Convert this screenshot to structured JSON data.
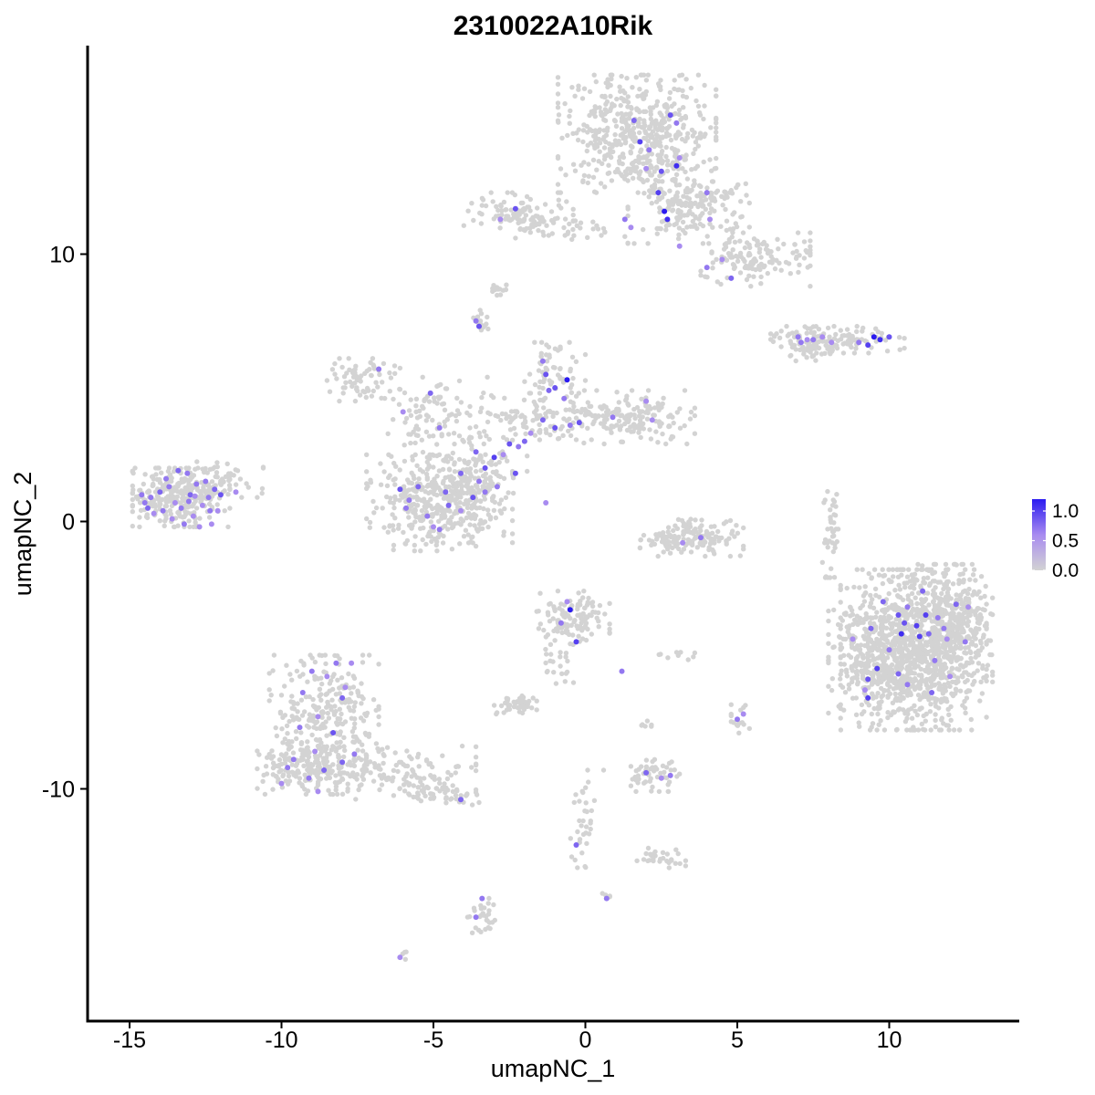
{
  "chart_data": {
    "type": "scatter",
    "title": "2310022A10Rik",
    "xlabel": "umapNC_1",
    "ylabel": "umapNC_2",
    "xlim": [
      -16.3,
      14.4
    ],
    "ylim": [
      -18.7,
      17.9
    ],
    "x_ticks": [
      -15,
      -10,
      -5,
      0,
      5,
      10
    ],
    "x_tick_labels": [
      "-15",
      "-10",
      "-5",
      "0",
      "5",
      "10"
    ],
    "y_ticks": [
      10,
      0,
      -10
    ],
    "y_tick_labels": [
      "10",
      "0",
      "-10"
    ],
    "grid": false,
    "legend": {
      "placement": "right",
      "type": "colorbar",
      "min": 0,
      "max": 1.2,
      "ticks": [
        1.0,
        0.5,
        0.0
      ],
      "tick_labels": [
        "1.0",
        "0.5",
        "0.0"
      ],
      "low_color": "#D3D3D3",
      "high_color": "#2B1BF0"
    },
    "colors": {
      "low": "#D3D3D3",
      "mid": "#A88BF0",
      "high": "#2B1BF0"
    },
    "clusters": [
      {
        "cx": 1.7,
        "cy": 14.5,
        "sx": 1.3,
        "sy": 1.1,
        "n": 520
      },
      {
        "cx": 3.4,
        "cy": 11.8,
        "sx": 1.0,
        "sy": 0.7,
        "n": 200
      },
      {
        "cx": 5.6,
        "cy": 9.8,
        "sx": 0.9,
        "sy": 0.5,
        "n": 130
      },
      {
        "cx": -2.2,
        "cy": 11.5,
        "sx": 0.9,
        "sy": 0.4,
        "n": 110
      },
      {
        "cx": -0.5,
        "cy": 11.0,
        "sx": 0.9,
        "sy": 0.25,
        "n": 30
      },
      {
        "cx": -7.3,
        "cy": 5.3,
        "sx": 0.6,
        "sy": 0.4,
        "n": 70
      },
      {
        "cx": -1.0,
        "cy": 5.5,
        "sx": 0.5,
        "sy": 0.6,
        "n": 60
      },
      {
        "cx": 1.6,
        "cy": 3.9,
        "sx": 1.0,
        "sy": 0.5,
        "n": 170
      },
      {
        "cx": -1.8,
        "cy": 3.8,
        "sx": 1.0,
        "sy": 0.5,
        "n": 110
      },
      {
        "cx": -5.0,
        "cy": 4.0,
        "sx": 0.9,
        "sy": 0.7,
        "n": 80
      },
      {
        "cx": -3.6,
        "cy": 2.0,
        "sx": 0.9,
        "sy": 0.6,
        "n": 90
      },
      {
        "cx": -5.4,
        "cy": 0.7,
        "sx": 0.9,
        "sy": 0.9,
        "n": 260
      },
      {
        "cx": -3.8,
        "cy": 0.8,
        "sx": 0.7,
        "sy": 0.8,
        "n": 180
      },
      {
        "cx": -13.3,
        "cy": 0.9,
        "sx": 0.8,
        "sy": 0.55,
        "n": 310
      },
      {
        "cx": -11.8,
        "cy": 1.6,
        "sx": 0.6,
        "sy": 0.35,
        "n": 40
      },
      {
        "cx": 3.5,
        "cy": -0.6,
        "sx": 0.85,
        "sy": 0.35,
        "n": 150
      },
      {
        "cx": 8.3,
        "cy": 6.8,
        "sx": 1.1,
        "sy": 0.25,
        "n": 130
      },
      {
        "cx": -3.5,
        "cy": 7.5,
        "sx": 0.15,
        "sy": 0.2,
        "n": 15
      },
      {
        "cx": -2.9,
        "cy": 8.7,
        "sx": 0.15,
        "sy": 0.12,
        "n": 12
      },
      {
        "cx": 8.1,
        "cy": -0.3,
        "sx": 0.15,
        "sy": 0.9,
        "n": 40
      },
      {
        "cx": 10.8,
        "cy": -4.8,
        "sx": 1.2,
        "sy": 1.5,
        "n": 1000
      },
      {
        "cx": 12.0,
        "cy": -3.8,
        "sx": 0.7,
        "sy": 1.1,
        "n": 300
      },
      {
        "cx": 9.6,
        "cy": -5.2,
        "sx": 0.8,
        "sy": 1.0,
        "n": 200
      },
      {
        "cx": -0.4,
        "cy": -3.6,
        "sx": 0.6,
        "sy": 0.5,
        "n": 120
      },
      {
        "cx": -8.6,
        "cy": -7.2,
        "sx": 0.9,
        "sy": 1.1,
        "n": 270
      },
      {
        "cx": -9.2,
        "cy": -9.2,
        "sx": 0.8,
        "sy": 0.5,
        "n": 160
      },
      {
        "cx": -6.2,
        "cy": -9.4,
        "sx": 1.3,
        "sy": 0.5,
        "n": 150
      },
      {
        "cx": -4.5,
        "cy": -10.2,
        "sx": 0.5,
        "sy": 0.2,
        "n": 40
      },
      {
        "cx": -2.3,
        "cy": -6.8,
        "sx": 0.35,
        "sy": 0.2,
        "n": 45
      },
      {
        "cx": -1.0,
        "cy": -5.3,
        "sx": 0.4,
        "sy": 0.6,
        "n": 25
      },
      {
        "cx": 2.3,
        "cy": -9.5,
        "sx": 0.4,
        "sy": 0.3,
        "n": 50
      },
      {
        "cx": 5.1,
        "cy": -7.4,
        "sx": 0.15,
        "sy": 0.3,
        "n": 15
      },
      {
        "cx": 2.5,
        "cy": -12.6,
        "sx": 0.4,
        "sy": 0.2,
        "n": 30
      },
      {
        "cx": 0.0,
        "cy": -11.3,
        "sx": 0.3,
        "sy": 1.0,
        "n": 35
      },
      {
        "cx": -3.4,
        "cy": -14.8,
        "sx": 0.25,
        "sy": 0.5,
        "n": 30
      },
      {
        "cx": 3.0,
        "cy": -5.0,
        "sx": 0.3,
        "sy": 0.1,
        "n": 10
      },
      {
        "cx": 2.1,
        "cy": -7.6,
        "sx": 0.15,
        "sy": 0.15,
        "n": 6
      },
      {
        "cx": -6.0,
        "cy": -16.3,
        "sx": 0.1,
        "sy": 0.1,
        "n": 4
      },
      {
        "cx": 0.7,
        "cy": -14.0,
        "sx": 0.1,
        "sy": 0.1,
        "n": 4
      },
      {
        "cx": 7.5,
        "cy": 6.4,
        "sx": 0.4,
        "sy": 0.2,
        "n": 30
      }
    ],
    "expressing_points": [
      [
        2.8,
        15.2
      ],
      [
        3.0,
        14.9
      ],
      [
        1.6,
        15.0
      ],
      [
        2.1,
        13.9
      ],
      [
        1.8,
        14.2
      ],
      [
        3.1,
        13.6
      ],
      [
        2.5,
        13.1
      ],
      [
        3.0,
        13.3
      ],
      [
        2.0,
        13.2
      ],
      [
        2.4,
        12.3
      ],
      [
        2.6,
        11.6
      ],
      [
        2.7,
        11.3
      ],
      [
        4.0,
        12.3
      ],
      [
        4.1,
        11.3
      ],
      [
        1.3,
        11.3
      ],
      [
        1.5,
        11.0
      ],
      [
        -2.3,
        11.7
      ],
      [
        -2.8,
        11.3
      ],
      [
        4.0,
        9.5
      ],
      [
        4.5,
        9.8
      ],
      [
        4.8,
        9.1
      ],
      [
        3.1,
        10.3
      ],
      [
        -3.6,
        7.5
      ],
      [
        -3.5,
        7.3
      ],
      [
        -1.3,
        5.5
      ],
      [
        -0.6,
        5.3
      ],
      [
        -1.0,
        5.0
      ],
      [
        -1.2,
        4.9
      ],
      [
        -1.4,
        6.0
      ],
      [
        -1.0,
        3.5
      ],
      [
        -1.4,
        3.8
      ],
      [
        -0.5,
        3.6
      ],
      [
        -0.2,
        3.7
      ],
      [
        -2.0,
        3.0
      ],
      [
        -1.8,
        3.3
      ],
      [
        -2.2,
        2.8
      ],
      [
        -2.5,
        2.9
      ],
      [
        -3.0,
        2.4
      ],
      [
        -3.3,
        2.0
      ],
      [
        -3.6,
        2.6
      ],
      [
        -2.7,
        2.5
      ],
      [
        -2.3,
        1.8
      ],
      [
        -3.5,
        1.5
      ],
      [
        -4.1,
        1.8
      ],
      [
        -5.1,
        4.8
      ],
      [
        -6.8,
        5.7
      ],
      [
        -6.0,
        4.1
      ],
      [
        -4.8,
        3.5
      ],
      [
        0.9,
        3.9
      ],
      [
        2.0,
        4.5
      ],
      [
        2.2,
        3.8
      ],
      [
        -0.7,
        4.6
      ],
      [
        -6.1,
        1.2
      ],
      [
        -5.9,
        0.5
      ],
      [
        -5.5,
        1.3
      ],
      [
        -5.2,
        0.2
      ],
      [
        -4.8,
        -0.3
      ],
      [
        -4.5,
        0.6
      ],
      [
        -3.7,
        0.9
      ],
      [
        -4.1,
        0.4
      ],
      [
        -3.3,
        1.1
      ],
      [
        -4.6,
        1.1
      ],
      [
        -5.0,
        -0.2
      ],
      [
        -2.9,
        1.3
      ],
      [
        -5.8,
        0.8
      ],
      [
        -1.3,
        0.7
      ],
      [
        -14.3,
        0.9
      ],
      [
        -14.0,
        1.1
      ],
      [
        -13.7,
        1.3
      ],
      [
        -13.5,
        0.7
      ],
      [
        -13.3,
        0.5
      ],
      [
        -13.0,
        1.0
      ],
      [
        -12.8,
        1.4
      ],
      [
        -12.6,
        0.6
      ],
      [
        -12.4,
        0.9
      ],
      [
        -12.2,
        1.2
      ],
      [
        -13.9,
        0.4
      ],
      [
        -14.2,
        0.3
      ],
      [
        -13.1,
        1.8
      ],
      [
        -12.9,
        0.2
      ],
      [
        -12.5,
        1.5
      ],
      [
        -13.6,
        0.1
      ],
      [
        -13.2,
        -0.1
      ],
      [
        -12.7,
        -0.2
      ],
      [
        -14.5,
        0.7
      ],
      [
        -13.4,
        1.9
      ],
      [
        -12.0,
        1.0
      ],
      [
        -11.5,
        1.1
      ],
      [
        -12.3,
        -0.1
      ],
      [
        -13.8,
        1.6
      ],
      [
        -12.1,
        0.4
      ],
      [
        -14.6,
        1.0
      ],
      [
        -14.4,
        0.5
      ],
      [
        -13.05,
        0.75
      ],
      [
        -12.85,
        0.95
      ],
      [
        -12.35,
        0.4
      ],
      [
        7.0,
        6.9
      ],
      [
        7.3,
        6.8
      ],
      [
        7.5,
        6.8
      ],
      [
        7.8,
        6.9
      ],
      [
        8.1,
        6.7
      ],
      [
        9.0,
        6.7
      ],
      [
        9.3,
        6.6
      ],
      [
        9.7,
        6.8
      ],
      [
        10.0,
        6.9
      ],
      [
        9.5,
        6.9
      ],
      [
        7.1,
        6.7
      ],
      [
        3.2,
        -0.8
      ],
      [
        3.8,
        -0.6
      ],
      [
        9.8,
        -3.0
      ],
      [
        10.3,
        -3.5
      ],
      [
        10.6,
        -3.2
      ],
      [
        10.9,
        -3.9
      ],
      [
        11.3,
        -4.2
      ],
      [
        11.6,
        -3.6
      ],
      [
        11.9,
        -4.4
      ],
      [
        12.2,
        -3.1
      ],
      [
        12.5,
        -4.5
      ],
      [
        11.1,
        -2.6
      ],
      [
        10.0,
        -4.8
      ],
      [
        9.6,
        -5.5
      ],
      [
        9.3,
        -5.9
      ],
      [
        10.3,
        -5.7
      ],
      [
        11.5,
        -5.2
      ],
      [
        12.0,
        -5.8
      ],
      [
        10.6,
        -6.1
      ],
      [
        9.2,
        -6.3
      ],
      [
        10.4,
        -4.2
      ],
      [
        11.0,
        -4.3
      ],
      [
        9.4,
        -4.0
      ],
      [
        8.8,
        -4.4
      ],
      [
        10.5,
        -3.8
      ],
      [
        11.2,
        -3.5
      ],
      [
        11.8,
        -4.0
      ],
      [
        12.6,
        -3.2
      ],
      [
        9.3,
        -6.6
      ],
      [
        11.4,
        -6.4
      ],
      [
        -0.5,
        -3.3
      ],
      [
        -0.8,
        -3.8
      ],
      [
        -0.3,
        -4.5
      ],
      [
        -0.6,
        -3.0
      ],
      [
        1.2,
        -5.6
      ],
      [
        -9.0,
        -5.6
      ],
      [
        -8.5,
        -5.8
      ],
      [
        -9.3,
        -6.4
      ],
      [
        -8.0,
        -6.6
      ],
      [
        -8.8,
        -7.3
      ],
      [
        -9.4,
        -7.7
      ],
      [
        -8.3,
        -7.9
      ],
      [
        -8.9,
        -8.6
      ],
      [
        -9.6,
        -8.9
      ],
      [
        -8.0,
        -9.0
      ],
      [
        -7.6,
        -8.7
      ],
      [
        -7.9,
        -6.2
      ],
      [
        -9.1,
        -9.6
      ],
      [
        -8.6,
        -9.3
      ],
      [
        -10.0,
        -9.8
      ],
      [
        -9.8,
        -9.2
      ],
      [
        -7.7,
        -5.3
      ],
      [
        -8.2,
        -5.3
      ],
      [
        -8.8,
        -10.1
      ],
      [
        -4.1,
        -10.4
      ],
      [
        -3.6,
        -14.8
      ],
      [
        -3.4,
        -14.1
      ],
      [
        -0.3,
        -12.1
      ],
      [
        0.7,
        -14.1
      ],
      [
        -6.1,
        -16.3
      ],
      [
        2.0,
        -9.4
      ],
      [
        2.5,
        -9.6
      ],
      [
        2.8,
        -9.5
      ],
      [
        5.0,
        -7.4
      ],
      [
        5.2,
        -7.2
      ]
    ],
    "expressing_values": [
      0.9,
      0.7,
      0.8,
      0.7,
      1.0,
      0.6,
      0.9,
      1.1,
      0.6,
      1.0,
      1.2,
      1.1,
      0.7,
      0.6,
      0.7,
      0.6,
      0.9,
      0.6,
      0.7,
      0.6,
      0.8,
      0.6,
      0.7,
      0.9,
      0.9,
      1.2,
      0.9,
      0.8,
      0.7,
      0.9,
      0.8,
      0.7,
      0.9,
      0.8,
      0.6,
      0.7,
      0.9,
      1.0,
      0.9,
      0.8,
      0.6,
      0.9,
      0.7,
      0.8,
      0.8,
      0.7,
      0.6,
      0.7,
      0.7,
      0.6,
      0.6,
      0.7,
      0.9,
      0.7,
      0.8,
      0.7,
      0.7,
      0.8,
      0.9,
      0.6,
      0.7,
      0.8,
      0.6,
      0.7,
      0.7,
      0.6,
      0.7,
      0.8,
      0.7,
      0.6,
      0.7,
      0.8,
      0.7,
      0.6,
      0.7,
      0.8,
      0.7,
      0.6,
      0.7,
      0.6,
      0.7,
      0.6,
      0.7,
      0.6,
      0.7,
      0.8,
      0.9,
      0.6,
      0.6,
      0.7,
      0.6,
      0.7,
      0.8,
      0.7,
      0.6,
      0.7,
      0.7,
      0.6,
      0.7,
      0.6,
      0.6,
      0.7,
      1.0,
      1.1,
      0.9,
      1.3,
      0.7,
      0.6,
      0.7,
      0.8,
      0.9,
      0.7,
      1.0,
      0.8,
      0.7,
      0.6,
      0.8,
      0.7,
      0.8,
      0.7,
      1.0,
      0.9,
      0.8,
      0.7,
      0.6,
      0.7,
      0.6,
      1.1,
      1.0,
      0.8,
      0.6,
      0.9,
      1.0,
      0.7,
      0.6,
      1.0,
      0.8,
      1.3,
      0.7,
      1.0,
      0.6,
      0.7,
      0.7,
      0.6,
      0.7,
      0.8,
      0.6,
      0.7,
      0.9,
      0.6,
      0.7,
      0.8,
      0.7,
      0.6,
      0.7,
      0.8,
      0.6,
      0.7,
      0.6,
      0.7,
      0.6,
      0.8,
      0.7,
      0.7,
      0.8,
      0.7,
      0.6,
      0.8,
      0.6,
      0.7,
      0.7,
      0.6
    ]
  }
}
